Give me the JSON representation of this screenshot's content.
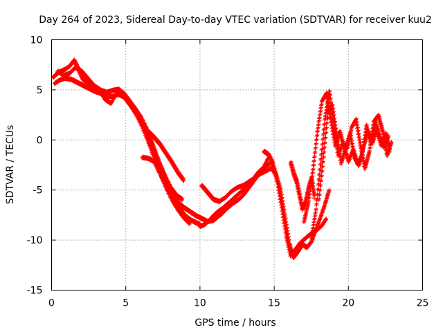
{
  "chart_data": {
    "type": "scatter",
    "title": "Day 264 of 2023, Sidereal Day-to-day VTEC variation (SDTVAR) for receiver kuu2",
    "xlabel": "GPS time / hours",
    "ylabel": "SDTVAR / TECUs",
    "xlim": [
      0,
      25
    ],
    "ylim": [
      -15,
      10
    ],
    "xticks": [
      0,
      5,
      10,
      15,
      20,
      25
    ],
    "yticks": [
      10,
      5,
      0,
      -5,
      -10,
      -15
    ],
    "grid": true,
    "marker": "+",
    "color": "#ff0000",
    "series": [
      {
        "name": "SDTVAR",
        "color": "#ff0000",
        "tracks": [
          {
            "x": [
              0.1,
              0.3,
              0.6,
              0.9,
              1.2,
              1.5,
              1.8,
              2.1,
              2.5,
              2.9,
              3.3,
              3.7,
              4.1,
              4.5,
              4.9,
              5.3,
              5.7,
              6.1,
              6.5,
              6.9,
              7.3,
              7.7,
              8.1,
              8.5,
              8.9,
              9.3,
              9.7,
              10.0
            ],
            "y": [
              6.2,
              6.5,
              6.8,
              7.0,
              7.3,
              7.9,
              7.0,
              6.0,
              5.6,
              5.2,
              4.9,
              4.7,
              4.9,
              5.0,
              4.5,
              3.6,
              2.8,
              1.8,
              0.5,
              -1.0,
              -2.6,
              -4.0,
              -5.4,
              -6.6,
              -7.5,
              -8.0,
              -8.3,
              -8.5
            ]
          },
          {
            "x": [
              0.2,
              0.5,
              0.9,
              1.3,
              1.7,
              2.1,
              2.5,
              2.9,
              3.3,
              3.7,
              4.1,
              4.5,
              4.9,
              5.3,
              5.7,
              6.1,
              6.5,
              6.9,
              7.3,
              7.7,
              8.1,
              8.5,
              8.9,
              9.3
            ],
            "y": [
              5.6,
              5.9,
              6.1,
              6.0,
              5.7,
              5.4,
              5.1,
              4.8,
              4.6,
              4.3,
              4.3,
              4.5,
              4.2,
              3.4,
              2.5,
              1.3,
              -0.2,
              -1.8,
              -3.4,
              -4.8,
              -6.0,
              -7.0,
              -7.8,
              -8.4
            ]
          },
          {
            "x": [
              0.4,
              0.8,
              1.2,
              1.6,
              2.0,
              2.4,
              2.8,
              3.2,
              3.6,
              4.0,
              4.4,
              4.8,
              5.2,
              5.6,
              6.0,
              6.4,
              6.8,
              7.2,
              7.6,
              8.0,
              8.4,
              8.8
            ],
            "y": [
              6.8,
              6.4,
              6.6,
              7.2,
              6.8,
              6.1,
              5.4,
              5.0,
              4.0,
              3.6,
              4.8,
              4.6,
              3.9,
              3.1,
              2.2,
              1.0,
              -0.6,
              -2.2,
              -3.6,
              -4.8,
              -5.6,
              -6.0
            ]
          },
          {
            "x": [
              6.1,
              6.5,
              6.9,
              7.3,
              7.7,
              8.1,
              8.5,
              8.9,
              9.3,
              9.7,
              10.1,
              10.5,
              10.9,
              11.3
            ],
            "y": [
              -1.8,
              -1.9,
              -2.2,
              -3.4,
              -4.6,
              -5.6,
              -6.3,
              -6.8,
              -7.2,
              -7.6,
              -7.9,
              -8.2,
              -8.1,
              -7.6
            ]
          },
          {
            "x": [
              6.5,
              6.9,
              7.3,
              7.7,
              8.1,
              8.5,
              8.9
            ],
            "y": [
              0.8,
              0.2,
              -0.5,
              -1.4,
              -2.3,
              -3.3,
              -4.1
            ]
          },
          {
            "x": [
              10.0,
              10.3,
              10.6,
              10.9,
              11.2,
              11.5,
              11.8,
              12.1,
              12.4,
              12.7,
              13.0,
              13.3,
              13.6,
              13.9,
              14.2,
              14.5,
              14.8
            ],
            "y": [
              -8.7,
              -8.5,
              -8.1,
              -7.6,
              -7.2,
              -6.9,
              -6.5,
              -6.1,
              -5.7,
              -5.3,
              -4.9,
              -4.4,
              -3.9,
              -3.3,
              -2.9,
              -2.6,
              -2.3
            ]
          },
          {
            "x": [
              10.1,
              10.5,
              10.9,
              11.3,
              11.7,
              12.1,
              12.5,
              12.9,
              13.3,
              13.7,
              14.1,
              14.5,
              14.9
            ],
            "y": [
              -4.6,
              -5.3,
              -6.0,
              -6.2,
              -5.8,
              -5.2,
              -4.8,
              -4.6,
              -4.2,
              -3.8,
              -3.4,
              -3.1,
              -2.8
            ]
          },
          {
            "x": [
              11.0,
              11.4,
              11.8,
              12.2,
              12.6,
              13.0,
              13.4,
              13.8,
              14.2,
              14.6
            ],
            "y": [
              -7.8,
              -7.5,
              -6.9,
              -6.4,
              -6.0,
              -5.4,
              -4.6,
              -3.8,
              -3.0,
              -1.8
            ]
          },
          {
            "x": [
              14.3,
              14.6,
              14.9,
              15.2,
              15.5,
              15.8,
              16.1,
              16.4,
              16.7,
              17.0,
              17.3,
              17.6,
              17.9,
              18.2,
              18.5
            ],
            "y": [
              -1.2,
              -1.5,
              -2.4,
              -4.2,
              -6.8,
              -9.6,
              -11.6,
              -11.0,
              -10.4,
              -10.0,
              -9.6,
              -9.3,
              -9.0,
              -8.6,
              -7.9
            ]
          },
          {
            "x": [
              14.8,
              15.1,
              15.4,
              15.7,
              16.0,
              16.3,
              16.6,
              16.9,
              17.2,
              17.5,
              17.8,
              18.1,
              18.4,
              18.7
            ],
            "y": [
              -2.8,
              -3.5,
              -5.0,
              -7.6,
              -10.4,
              -11.8,
              -11.2,
              -10.5,
              -10.8,
              -10.2,
              -9.0,
              -7.8,
              -6.5,
              -5.0
            ]
          },
          {
            "x": [
              16.1,
              16.3,
              16.5,
              16.7,
              16.9,
              17.1,
              17.3,
              17.5,
              17.7
            ],
            "y": [
              -2.3,
              -3.4,
              -4.2,
              -5.6,
              -7.0,
              -6.2,
              -4.8,
              -3.8,
              -5.8
            ]
          },
          {
            "x": [
              17.0,
              17.3,
              17.6,
              17.9,
              18.2,
              18.5,
              18.8,
              19.1,
              19.4,
              19.7,
              20.0,
              20.3,
              20.6,
              20.9,
              21.2,
              21.5,
              21.8,
              22.1,
              22.4,
              22.7
            ],
            "y": [
              -8.2,
              -6.2,
              -3.0,
              0.8,
              3.8,
              4.6,
              2.0,
              -0.6,
              0.8,
              -0.8,
              -2.2,
              -1.0,
              -2.4,
              -1.6,
              1.4,
              -0.4,
              1.8,
              0.2,
              -0.8,
              0.4
            ]
          },
          {
            "x": [
              17.5,
              17.8,
              18.1,
              18.4,
              18.7,
              19.0,
              19.3,
              19.6,
              19.9,
              20.2,
              20.5,
              20.8,
              21.1,
              21.4,
              21.7,
              22.0,
              22.3,
              22.6,
              22.9
            ],
            "y": [
              -9.8,
              -7.0,
              -2.5,
              2.0,
              4.8,
              1.4,
              -1.6,
              -0.4,
              -0.9,
              1.2,
              2.0,
              -0.6,
              -2.9,
              -1.2,
              1.8,
              2.4,
              0.8,
              -1.6,
              -0.2
            ]
          },
          {
            "x": [
              18.0,
              18.3,
              18.6,
              18.9,
              19.2,
              19.5,
              19.8,
              20.1,
              20.4,
              20.7,
              21.0,
              21.3,
              21.6,
              21.9,
              22.2,
              22.5,
              22.8
            ],
            "y": [
              -6.0,
              -1.8,
              2.6,
              3.4,
              0.4,
              -2.4,
              -0.8,
              0.6,
              -1.8,
              -2.6,
              -0.8,
              0.8,
              -0.4,
              1.0,
              -0.6,
              0.6,
              -1.2
            ]
          }
        ]
      }
    ]
  }
}
